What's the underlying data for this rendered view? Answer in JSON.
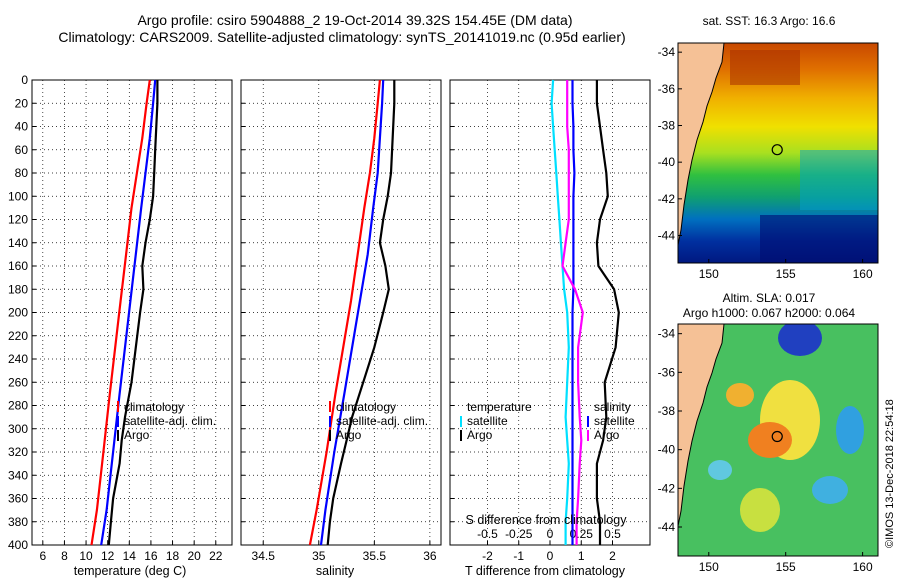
{
  "title": {
    "line1": "Argo profile: csiro 5904888_2 19-Oct-2014 39.32S 154.45E (DM data)",
    "line2": "Climatology: CARS2009. Satellite-adjusted climatology: synTS_20141019.nc (0.95d earlier)"
  },
  "colors": {
    "climatology": "#ff0000",
    "satellite": "#0000ff",
    "argo": "#000000",
    "temp_diff": "#00e0ff",
    "sal_diff": "#ff00ff",
    "sat_sal": "#0000ff"
  },
  "chart_data": [
    {
      "type": "line",
      "id": "temperature",
      "xlabel": "temperature (deg C)",
      "ylabel": "",
      "xlim": [
        5,
        23.5
      ],
      "ylim": [
        400,
        0
      ],
      "xticks": [
        6,
        8,
        10,
        12,
        14,
        16,
        18,
        20,
        22
      ],
      "yticks": [
        0,
        20,
        40,
        60,
        80,
        100,
        120,
        140,
        160,
        180,
        200,
        220,
        240,
        260,
        280,
        300,
        320,
        340,
        360,
        380,
        400
      ],
      "grid": true,
      "legend": {
        "entries": [
          "climatology",
          "satellite-adj. clim.",
          "Argo"
        ],
        "placement": "lower-right"
      },
      "series": [
        {
          "name": "climatology",
          "x": [
            15.9,
            15.6,
            15.2,
            14.7,
            14.2,
            13.7,
            13.2,
            12.7,
            12.2,
            11.6,
            11.0,
            10.5
          ],
          "y": [
            0,
            20,
            50,
            80,
            110,
            150,
            190,
            230,
            270,
            320,
            370,
            400
          ]
        },
        {
          "name": "satellite-adj. clim.",
          "x": [
            16.4,
            16.2,
            15.9,
            15.5,
            15.1,
            14.6,
            14.1,
            13.6,
            13.1,
            12.5,
            11.9,
            11.4
          ],
          "y": [
            0,
            20,
            50,
            80,
            110,
            150,
            190,
            230,
            270,
            320,
            370,
            400
          ]
        },
        {
          "name": "Argo",
          "x": [
            16.6,
            16.6,
            16.5,
            16.4,
            16.3,
            16.2,
            15.9,
            15.5,
            15.2,
            15.3,
            15.0,
            14.6,
            14.2,
            13.6,
            13.3,
            13.1,
            12.5,
            12.3,
            12.1
          ],
          "y": [
            0,
            20,
            40,
            60,
            80,
            100,
            120,
            140,
            160,
            180,
            200,
            230,
            260,
            290,
            310,
            330,
            360,
            380,
            400
          ]
        }
      ]
    },
    {
      "type": "line",
      "id": "salinity",
      "xlabel": "salinity",
      "xlim": [
        34.3,
        36.1
      ],
      "ylim": [
        400,
        0
      ],
      "xticks": [
        34.5,
        35,
        35.5,
        36
      ],
      "xticklabels": [
        "34.5",
        "35",
        "35.5",
        "36"
      ],
      "grid": true,
      "legend": {
        "entries": [
          "climatology",
          "satellite-adj. clim.",
          "Argo"
        ],
        "placement": "lower-right"
      },
      "series": [
        {
          "name": "climatology",
          "x": [
            35.55,
            35.53,
            35.5,
            35.46,
            35.41,
            35.35,
            35.29,
            35.22,
            35.15,
            35.07,
            34.98,
            34.92
          ],
          "y": [
            0,
            20,
            50,
            80,
            110,
            150,
            190,
            230,
            270,
            320,
            370,
            400
          ]
        },
        {
          "name": "satellite-adj. clim.",
          "x": [
            35.58,
            35.57,
            35.55,
            35.53,
            35.49,
            35.44,
            35.37,
            35.3,
            35.23,
            35.14,
            35.06,
            35.02
          ],
          "y": [
            0,
            20,
            50,
            80,
            110,
            150,
            190,
            230,
            270,
            320,
            370,
            400
          ]
        },
        {
          "name": "Argo",
          "x": [
            35.68,
            35.68,
            35.67,
            35.66,
            35.65,
            35.62,
            35.58,
            35.55,
            35.6,
            35.63,
            35.58,
            35.5,
            35.4,
            35.3,
            35.25,
            35.2,
            35.13,
            35.1,
            35.08
          ],
          "y": [
            0,
            20,
            40,
            60,
            80,
            100,
            120,
            140,
            160,
            180,
            200,
            230,
            260,
            290,
            310,
            330,
            360,
            380,
            400
          ]
        }
      ]
    },
    {
      "type": "line",
      "id": "difference",
      "xlabel": "T difference from climatology",
      "xlim": [
        -3.2,
        3.2
      ],
      "ylim": [
        400,
        0
      ],
      "xticks": [
        -2,
        -1,
        0,
        1,
        2
      ],
      "xticklabels": [
        "-2",
        "-1",
        "0",
        "1",
        "2"
      ],
      "secondary_xlabel": "S difference from climatology",
      "secondary_xticks": [
        "-0.5",
        "-0.25",
        "0",
        "0.25",
        "0.5"
      ],
      "grid": true,
      "legend": {
        "entries": [
          "temperature",
          "satellite",
          "Argo",
          "salinity",
          "satellite",
          "Argo"
        ],
        "placement": "lower"
      },
      "series": [
        {
          "name": "temperature satellite",
          "x": [
            0.1,
            0.05,
            0.1,
            0.15,
            0.2,
            0.25,
            0.3,
            0.35,
            0.4,
            0.45,
            0.55,
            0.6,
            0.55,
            0.5,
            0.55,
            0.6,
            0.55,
            0.5,
            0.5
          ],
          "y": [
            0,
            20,
            40,
            60,
            80,
            100,
            120,
            140,
            160,
            180,
            200,
            230,
            260,
            290,
            310,
            330,
            360,
            380,
            400
          ]
        },
        {
          "name": "temperature Argo",
          "x": [
            1.5,
            1.5,
            1.6,
            1.7,
            1.8,
            1.85,
            1.6,
            1.5,
            1.55,
            2.05,
            2.2,
            2.1,
            1.75,
            1.8,
            1.7,
            1.5,
            1.5,
            1.6,
            1.6
          ],
          "y": [
            0,
            20,
            40,
            60,
            80,
            100,
            120,
            140,
            160,
            180,
            200,
            230,
            260,
            290,
            310,
            330,
            360,
            380,
            400
          ]
        },
        {
          "name": "salinity satellite",
          "x": [
            0.72,
            0.72,
            0.75,
            0.75,
            0.78,
            0.75,
            0.75,
            0.75,
            0.75,
            0.75,
            0.72,
            0.72,
            0.72,
            0.72,
            0.72,
            0.72,
            0.72,
            0.72,
            0.72
          ],
          "y": [
            0,
            20,
            40,
            60,
            80,
            100,
            120,
            140,
            160,
            180,
            200,
            230,
            260,
            290,
            310,
            330,
            360,
            380,
            400
          ]
        },
        {
          "name": "salinity Argo",
          "x": [
            0.55,
            0.55,
            0.55,
            0.6,
            0.6,
            0.6,
            0.6,
            0.5,
            0.4,
            0.8,
            1.05,
            0.9,
            0.9,
            0.95,
            1.0,
            0.95,
            0.9,
            0.85,
            0.85
          ],
          "y": [
            0,
            20,
            40,
            60,
            80,
            100,
            120,
            140,
            160,
            180,
            200,
            230,
            260,
            290,
            310,
            330,
            360,
            380,
            400
          ]
        }
      ]
    },
    {
      "type": "heatmap",
      "id": "sst_map",
      "title": "sat. SST: 16.3 Argo: 16.6",
      "xlim": [
        148,
        161
      ],
      "ylim": [
        -45.5,
        -33.5
      ],
      "xticks": [
        150,
        155,
        160
      ],
      "yticks": [
        -34,
        -36,
        -38,
        -40,
        -42,
        -44
      ],
      "marker": {
        "lon": 154.45,
        "lat": -39.32
      }
    },
    {
      "type": "heatmap",
      "id": "sla_map",
      "title": "Altim. SLA: 0.017",
      "subtitle": "Argo h1000: 0.067 h2000: 0.064",
      "xlim": [
        148,
        161
      ],
      "ylim": [
        -45.5,
        -33.5
      ],
      "xticks": [
        150,
        155,
        160
      ],
      "yticks": [
        -34,
        -36,
        -38,
        -40,
        -42,
        -44
      ],
      "marker": {
        "lon": 154.45,
        "lat": -39.32
      }
    }
  ],
  "credit": "©IMOS 13-Dec-2018 22:54:18"
}
